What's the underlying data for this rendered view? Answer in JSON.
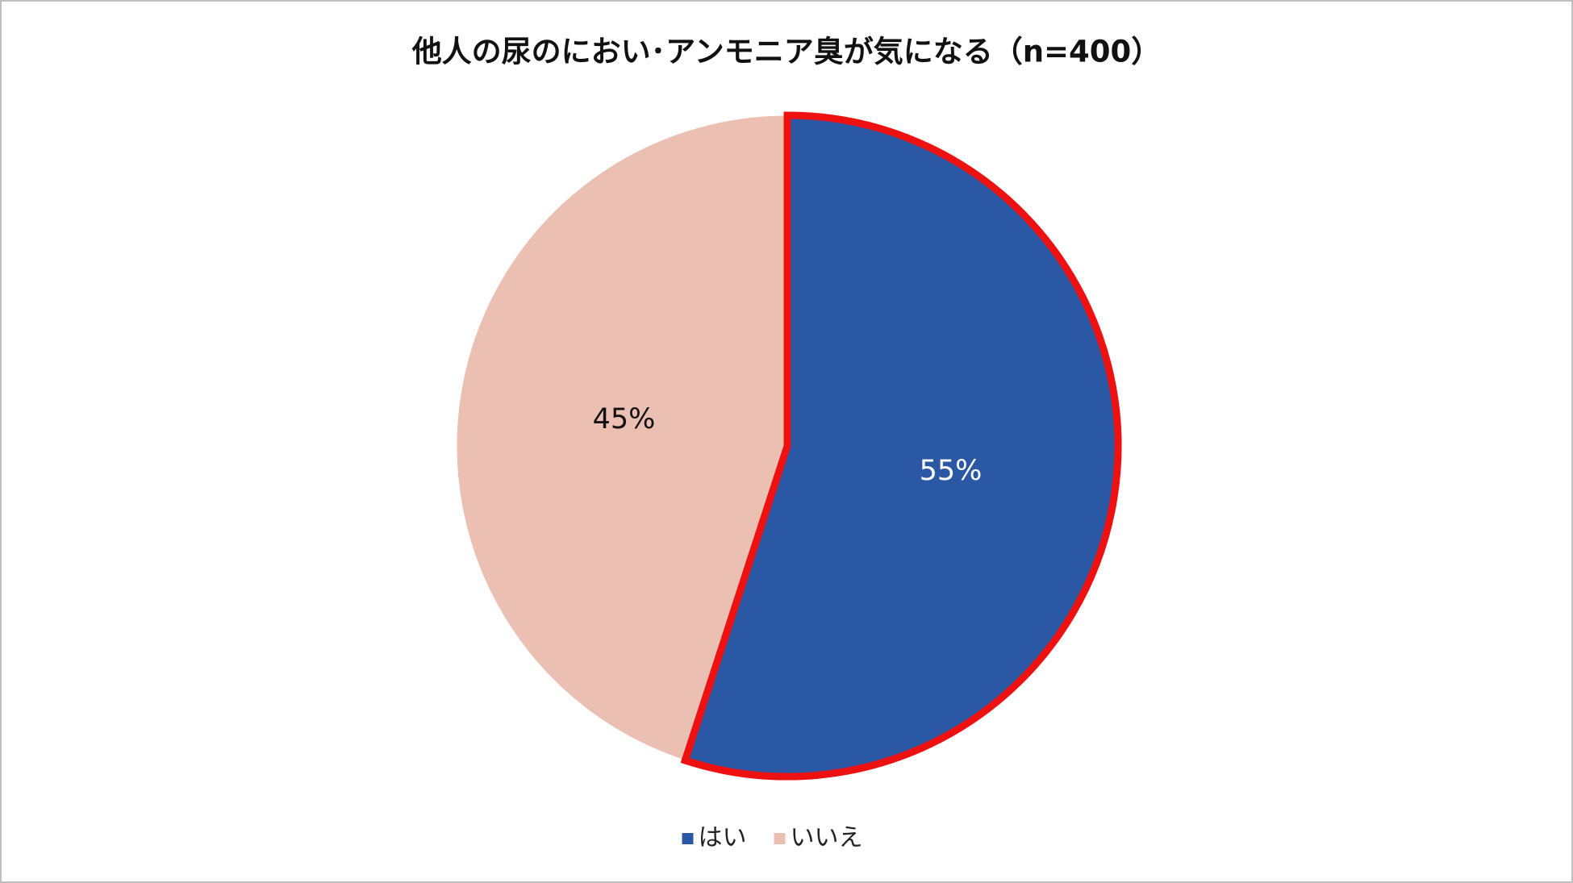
{
  "chart_data": {
    "type": "pie",
    "title": "他人の尿のにおい･アンモニア臭が気になる（n=400）",
    "categories": [
      "はい",
      "いいえ"
    ],
    "values": [
      55,
      45
    ],
    "value_labels": [
      "55%",
      "45%"
    ],
    "colors": [
      "#2b58a5",
      "#ecbfb3"
    ],
    "label_colors": [
      "#ffffff",
      "#111111"
    ],
    "outline_colors": [
      "#ee1111",
      null
    ],
    "legend": "bottom"
  }
}
